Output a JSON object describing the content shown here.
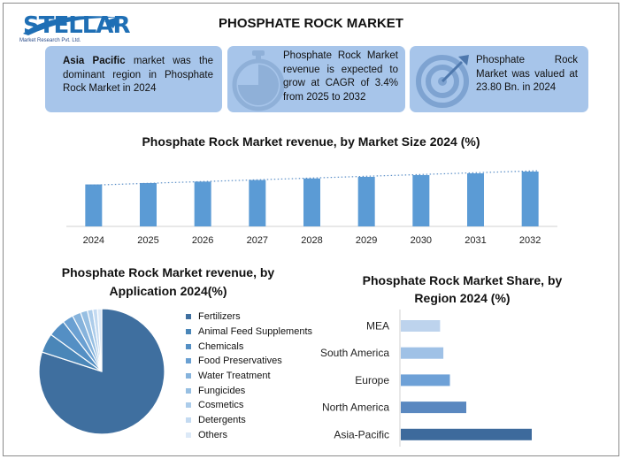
{
  "brand": {
    "logo_text": "STELLAR",
    "logo_subtext": "Market Research Pvt. Ltd.",
    "logo_color": "#1f6fb5"
  },
  "title": "PHOSPHATE ROCK MARKET",
  "cards": [
    {
      "bold": "Asia Pacific",
      "text": " market was the dominant region in Phosphate Rock Market in 2024",
      "icon": ""
    },
    {
      "bold": "",
      "text": "Phosphate Rock Market revenue is expected to grow at CAGR of 3.4% from 2025 to 2032",
      "icon": "stopwatch-icon"
    },
    {
      "bold": "",
      "text": "Phosphate Rock Market was valued at 23.80 Bn. in 2024",
      "icon": "target-icon"
    }
  ],
  "chart_data": [
    {
      "type": "bar",
      "title": "Phosphate Rock Market revenue, by Market Size 2024 (%)",
      "categories": [
        "2024",
        "2025",
        "2026",
        "2027",
        "2028",
        "2029",
        "2030",
        "2031",
        "2032"
      ],
      "values": [
        23.8,
        24.6,
        25.4,
        26.3,
        27.2,
        28.1,
        29.1,
        30.1,
        31.1
      ],
      "trendline": "dotted",
      "color": "#5b9bd5",
      "ylim": [
        0,
        31.1
      ],
      "grid": false
    },
    {
      "type": "pie",
      "title": "Phosphate Rock Market revenue, by Application 2024(%)",
      "labels": [
        "Fertilizers",
        "Animal Feed Supplements",
        "Chemicals",
        "Food Preservatives",
        "Water Treatment",
        "Fungicides",
        "Cosmetics",
        "Detergents",
        "Others"
      ],
      "values": [
        80,
        5,
        4.5,
        2.8,
        2.2,
        1.8,
        1.4,
        1.2,
        1.1
      ],
      "colors": [
        "#3f6f9f",
        "#4a86b8",
        "#548fc4",
        "#6aa0d2",
        "#86b3dc",
        "#97bfe2",
        "#acccea",
        "#c3daf1",
        "#dce9f7"
      ],
      "legend": "right"
    },
    {
      "type": "bar",
      "orientation": "horizontal",
      "title": "Phosphate Rock Market Share, by Region 2024 (%)",
      "categories": [
        "MEA",
        "South America",
        "Europe",
        "North America",
        "Asia-Pacific"
      ],
      "values": [
        6,
        6.5,
        7.5,
        10,
        20
      ],
      "colors": [
        "#bdd3ed",
        "#9fc1e6",
        "#6ea1d7",
        "#5a88c0",
        "#3d6a9c"
      ],
      "xlim": [
        0,
        20
      ],
      "grid": false
    }
  ]
}
